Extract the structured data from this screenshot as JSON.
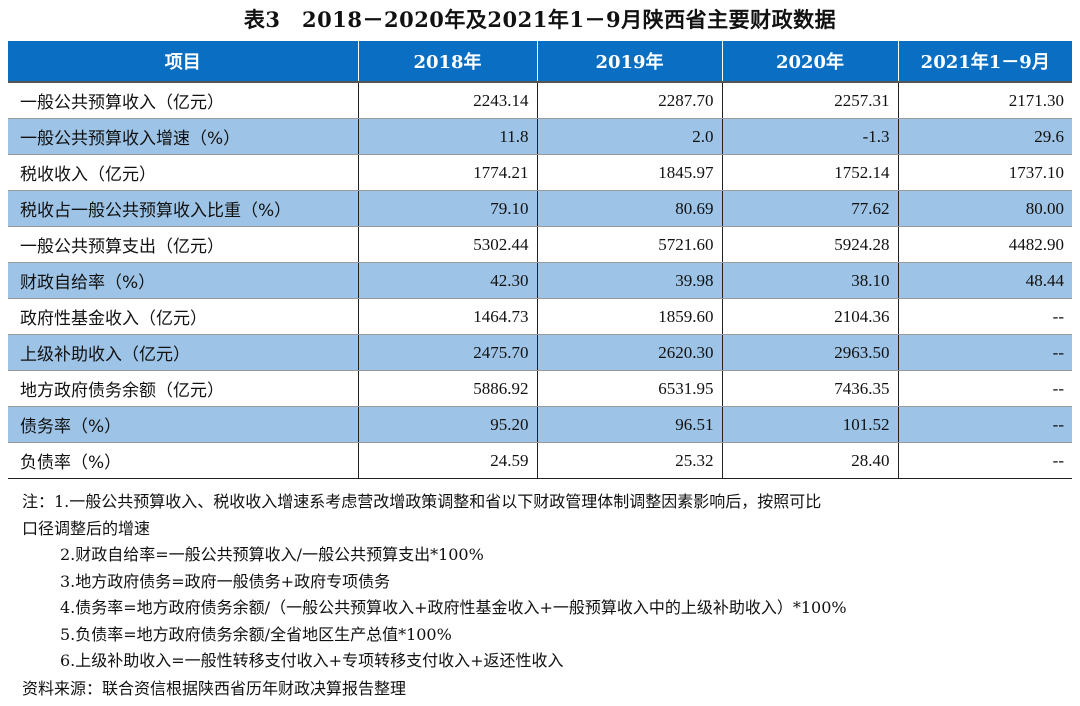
{
  "title": "表3　2018－2020年及2021年1－9月陕西省主要财政数据",
  "columns": [
    "项目",
    "2018年",
    "2019年",
    "2020年",
    "2021年1－9月"
  ],
  "rows": [
    {
      "label": "一般公共预算收入（亿元）",
      "values": [
        "2243.14",
        "2287.70",
        "2257.31",
        "2171.30"
      ]
    },
    {
      "label": "一般公共预算收入增速（%）",
      "values": [
        "11.8",
        "2.0",
        "-1.3",
        "29.6"
      ]
    },
    {
      "label": "税收收入（亿元）",
      "values": [
        "1774.21",
        "1845.97",
        "1752.14",
        "1737.10"
      ]
    },
    {
      "label": "税收占一般公共预算收入比重（%）",
      "values": [
        "79.10",
        "80.69",
        "77.62",
        "80.00"
      ]
    },
    {
      "label": "一般公共预算支出（亿元）",
      "values": [
        "5302.44",
        "5721.60",
        "5924.28",
        "4482.90"
      ]
    },
    {
      "label": "财政自给率（%）",
      "values": [
        "42.30",
        "39.98",
        "38.10",
        "48.44"
      ]
    },
    {
      "label": "政府性基金收入（亿元）",
      "values": [
        "1464.73",
        "1859.60",
        "2104.36",
        "--"
      ]
    },
    {
      "label": "上级补助收入（亿元）",
      "values": [
        "2475.70",
        "2620.30",
        "2963.50",
        "--"
      ]
    },
    {
      "label": "地方政府债务余额（亿元）",
      "values": [
        "5886.92",
        "6531.95",
        "7436.35",
        "--"
      ]
    },
    {
      "label": "债务率（%）",
      "values": [
        "95.20",
        "96.51",
        "101.52",
        "--"
      ]
    },
    {
      "label": "负债率（%）",
      "values": [
        "24.59",
        "25.32",
        "28.40",
        "--"
      ]
    }
  ],
  "notes": [
    "注：1.一般公共预算收入、税收收入增速系考虑营改增政策调整和省以下财政管理体制调整因素影响后，按照可比",
    "口径调整后的增速",
    "2.财政自给率=一般公共预算收入/一般公共预算支出*100%",
    "3.地方政府债务=政府一般债务+政府专项债务",
    "4.债务率=地方政府债务余额/（一般公共预算收入+政府性基金收入+一般预算收入中的上级补助收入）*100%",
    "5.负债率=地方政府债务余额/全省地区生产总值*100%",
    "6.上级补助收入=一般性转移支付收入+专项转移支付收入+返还性收入"
  ],
  "source": "资料来源：联合资信根据陕西省历年财政决算报告整理",
  "colors": {
    "header": "#0a6fc2",
    "alt_row": "#9dc3e6"
  }
}
